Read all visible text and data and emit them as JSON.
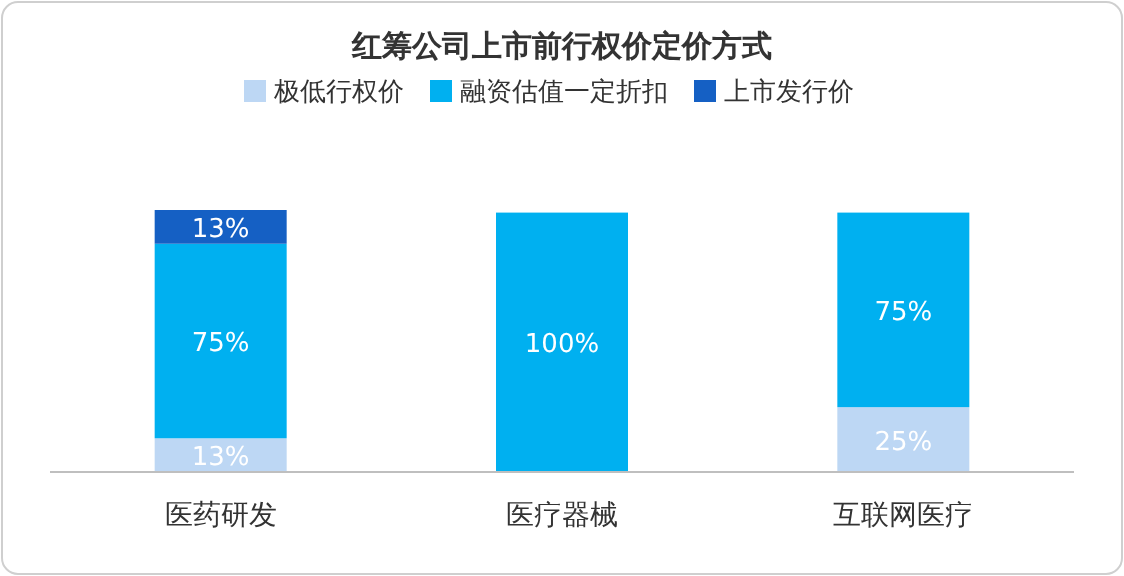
{
  "chart_data": {
    "type": "bar",
    "title": "红筹公司上市前行权价定价方式",
    "categories": [
      "医药研发",
      "医疗器械",
      "互联网医疗"
    ],
    "stacked": true,
    "legend": "top",
    "series": [
      {
        "name": "极低行权价",
        "color": "#bdd7f4",
        "values": [
          13,
          0,
          25
        ],
        "value_labels": [
          "13%",
          null,
          "25%"
        ]
      },
      {
        "name": "融资估值一定折扣",
        "color": "#00b0f0",
        "values": [
          75,
          100,
          75
        ],
        "value_labels": [
          "75%",
          "100%",
          "75%"
        ]
      },
      {
        "name": "上市发行价",
        "color": "#1560c4",
        "values": [
          13,
          0,
          0
        ],
        "value_labels": [
          "13%",
          null,
          null
        ]
      }
    ]
  }
}
